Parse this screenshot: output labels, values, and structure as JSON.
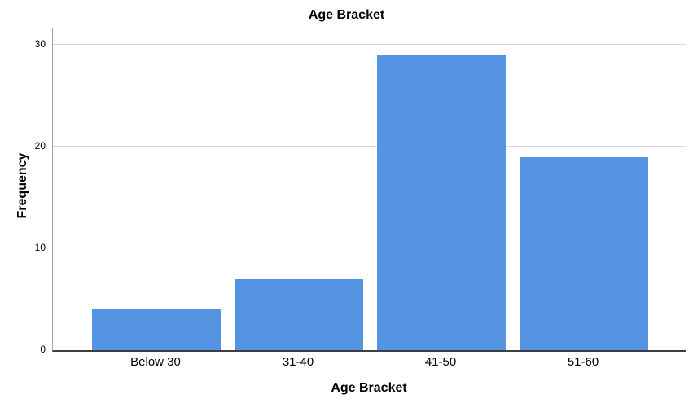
{
  "chart_data": {
    "type": "bar",
    "title": "Age Bracket",
    "xlabel": "Age Bracket",
    "ylabel": "Frequency",
    "categories": [
      "Below 30",
      "31-40",
      "41-50",
      "51-60"
    ],
    "values": [
      4,
      7,
      29,
      19
    ],
    "yticks": [
      0,
      10,
      20,
      30
    ],
    "ylim": [
      0,
      31.7
    ],
    "grid": true,
    "legend_position": "none",
    "bar_color": "#5594E2",
    "gridline_color": "#D8D8D8",
    "y_axis_color": "#A6A6A6",
    "x_axis_color": "#3F3F3F",
    "text_color": "#000000"
  }
}
